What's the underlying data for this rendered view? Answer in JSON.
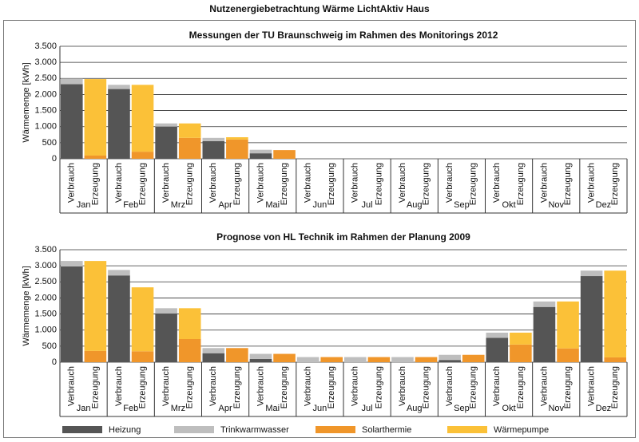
{
  "title": "Nutzenergiebetrachtung Wärme LichtAktiv Haus",
  "legend": [
    {
      "name": "Heizung",
      "color": "#555555"
    },
    {
      "name": "Trinkwarmwasser",
      "color": "#bebebe"
    },
    {
      "name": "Solarthermie",
      "color": "#f0962a"
    },
    {
      "name": "Wärmepumpe",
      "color": "#fbc138"
    }
  ],
  "chart_data": [
    {
      "type": "bar",
      "stacked": true,
      "title": "Messungen der TU Braunschweig im Rahmen des Monitorings 2012",
      "ylabel": "Wärmemenge [kWh]",
      "categories": [
        "Jan",
        "Feb",
        "Mrz",
        "Apr",
        "Mai",
        "Jun",
        "Jul",
        "Aug",
        "Sep",
        "Okt",
        "Nov",
        "Dez"
      ],
      "stack_labels": [
        "Verbrauch",
        "Erzeugung"
      ],
      "ylim": [
        0,
        3500
      ],
      "yticks": [
        0,
        500,
        {
          "value": 1000,
          "label": "1.000"
        },
        {
          "value": 1500,
          "label": "1.500"
        },
        {
          "value": 2000,
          "label": "2.000"
        },
        {
          "value": 2500,
          "label": "2.500"
        },
        {
          "value": 3000,
          "label": "3.000"
        },
        {
          "value": 3500,
          "label": "3.500"
        }
      ],
      "grid": true,
      "series": [
        {
          "stack": 0,
          "values": [
            2320,
            2170,
            1000,
            550,
            170,
            null,
            null,
            null,
            null,
            null,
            null,
            null
          ]
        },
        {
          "stack": 0,
          "values": [
            180,
            130,
            100,
            100,
            110,
            null,
            null,
            null,
            null,
            null,
            null,
            null
          ]
        },
        {
          "stack": 1,
          "values": [
            100,
            220,
            650,
            600,
            270,
            null,
            null,
            null,
            null,
            null,
            null,
            null
          ]
        },
        {
          "stack": 1,
          "values": [
            2380,
            2080,
            450,
            70,
            0,
            null,
            null,
            null,
            null,
            null,
            null,
            null
          ]
        }
      ]
    },
    {
      "type": "bar",
      "stacked": true,
      "title": "Prognose von HL Technik im Rahmen der Planung 2009",
      "ylabel": "Wärmemenge [kWh]",
      "categories": [
        "Jan",
        "Feb",
        "Mrz",
        "Apr",
        "Mai",
        "Jun",
        "Jul",
        "Aug",
        "Sep",
        "Okt",
        "Nov",
        "Dez"
      ],
      "stack_labels": [
        "Verbrauch",
        "Erzeugung"
      ],
      "ylim": [
        0,
        3500
      ],
      "yticks": [
        0,
        500,
        {
          "value": 1000,
          "label": "1.000"
        },
        {
          "value": 1500,
          "label": "1.500"
        },
        {
          "value": 2000,
          "label": "2.000"
        },
        {
          "value": 2500,
          "label": "2.500"
        },
        {
          "value": 3000,
          "label": "3.000"
        },
        {
          "value": 3500,
          "label": "3.500"
        }
      ],
      "grid": true,
      "series": [
        {
          "stack": 0,
          "values": [
            2980,
            2700,
            1520,
            280,
            100,
            0,
            0,
            0,
            70,
            760,
            1720,
            2680
          ]
        },
        {
          "stack": 0,
          "values": [
            170,
            170,
            160,
            160,
            160,
            160,
            160,
            160,
            160,
            160,
            170,
            170
          ]
        },
        {
          "stack": 1,
          "values": [
            350,
            340,
            720,
            440,
            260,
            160,
            160,
            160,
            230,
            550,
            430,
            150
          ]
        },
        {
          "stack": 1,
          "values": [
            2800,
            1990,
            960,
            0,
            0,
            0,
            0,
            0,
            0,
            370,
            1460,
            2700
          ]
        }
      ]
    }
  ]
}
